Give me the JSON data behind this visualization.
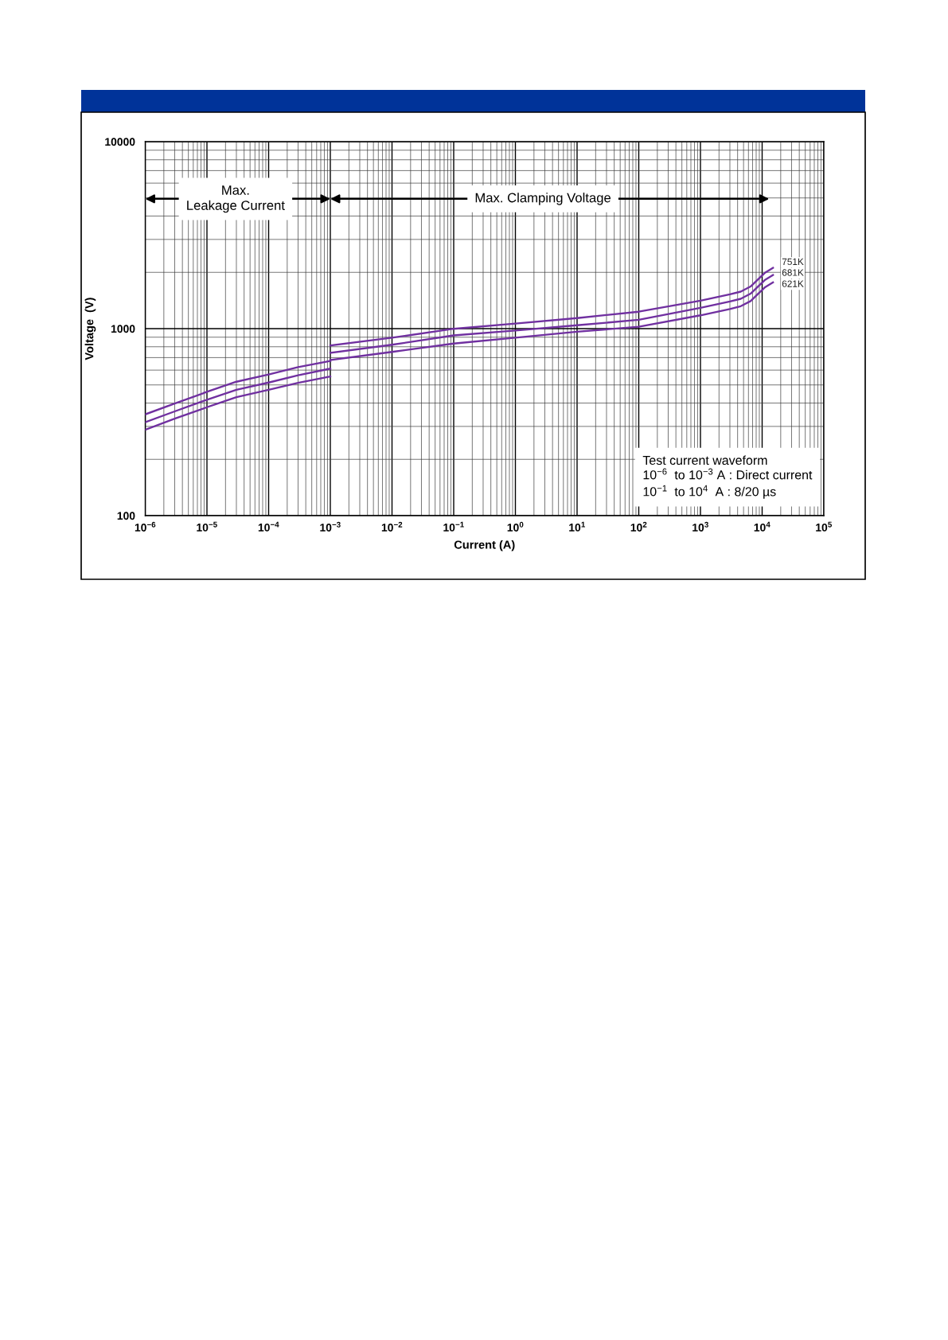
{
  "chart_data": {
    "type": "line",
    "xlabel": "Current (A)",
    "ylabel": "Voltage  (V)",
    "log": "xy",
    "grid": true,
    "xlim": [
      1e-06,
      100000.0
    ],
    "ylim": [
      100,
      10000
    ],
    "xticks": [
      {
        "value": 1e-06,
        "label": "10$^{−6}$"
      },
      {
        "value": 1e-05,
        "label": "10$^{−5}$"
      },
      {
        "value": 0.0001,
        "label": "10$^{−4}$"
      },
      {
        "value": 0.001,
        "label": "10$^{−3}$"
      },
      {
        "value": 0.01,
        "label": "10$^{−2}$"
      },
      {
        "value": 0.1,
        "label": "10$^{−1}$"
      },
      {
        "value": 1,
        "label": "10$^{0}$"
      },
      {
        "value": 10,
        "label": "10$^{1}$"
      },
      {
        "value": 100,
        "label": "10$^{2}$"
      },
      {
        "value": 1000,
        "label": "10$^{3}$"
      },
      {
        "value": 10000,
        "label": "10$^{4}$"
      },
      {
        "value": 100000,
        "label": "10$^{5}$"
      }
    ],
    "yticks": [
      100,
      1000,
      10000
    ],
    "x": [
      1e-06,
      3e-06,
      1e-05,
      3e-05,
      0.0001,
      0.0003,
      0.001,
      null,
      0.001,
      0.01,
      0.1,
      1,
      10,
      100,
      1000,
      3000,
      4500,
      6500,
      8500,
      11000,
      15000
    ],
    "series": [
      {
        "name": "751K",
        "color": "#7030a0",
        "values": [
          348,
          398,
          459,
          520,
          569,
          622,
          672,
          null,
          812,
          894,
          998,
          1064,
          1139,
          1232,
          1410,
          1525,
          1577,
          1680,
          1830,
          1985,
          2113
        ]
      },
      {
        "name": "681K",
        "color": "#7030a0",
        "values": [
          316,
          361,
          417,
          471,
          515,
          563,
          611,
          null,
          743,
          820,
          920,
          977,
          1042,
          1115,
          1291,
          1396,
          1444,
          1538,
          1676,
          1817,
          1935
        ]
      },
      {
        "name": "621K",
        "color": "#7030a0",
        "values": [
          288,
          330,
          380,
          430,
          471,
          513,
          555,
          null,
          679,
          751,
          832,
          894,
          963,
          1023,
          1178,
          1274,
          1318,
          1404,
          1529,
          1659,
          1766
        ]
      }
    ],
    "annotations": [
      "Max.\nLeakage Current",
      "Max. Clamping Voltage",
      "Test current waveform\n10$^{−6}$  to 10$^{−3}$ A : Direct current\n10$^{−1}$  to 10$^{4}$  A : 8/20 µs"
    ]
  }
}
